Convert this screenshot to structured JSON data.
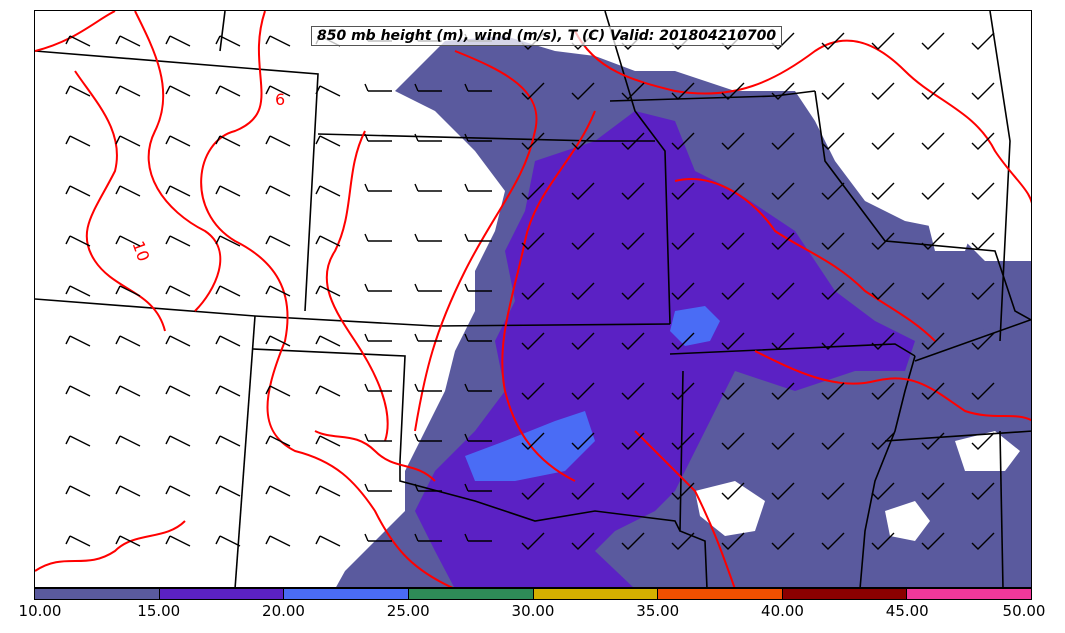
{
  "title": "850 mb height (m), wind (m/s), T (C) Valid: 201804210700",
  "contour_labels": [
    "6",
    "10"
  ],
  "colorbar": {
    "ticks": [
      "10.00",
      "15.00",
      "20.00",
      "25.00",
      "30.00",
      "35.00",
      "40.00",
      "45.00",
      "50.00"
    ],
    "colors": [
      "#5a5a9e",
      "#5b21c4",
      "#4a6cf5",
      "#2e8b57",
      "#d4b000",
      "#f05000",
      "#8b0000",
      "#f0389a"
    ]
  },
  "colors": {
    "isotherm": "#ff0000",
    "borders": "#000000",
    "barbs": "#000000"
  }
}
